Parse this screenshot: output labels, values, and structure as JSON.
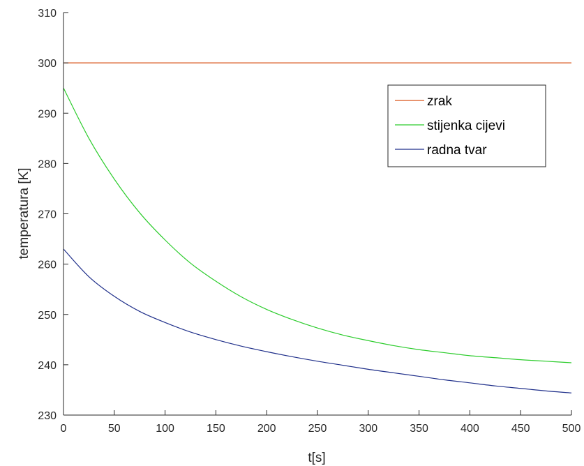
{
  "chart_data": {
    "type": "line",
    "xlabel": "t[s]",
    "ylabel": "temperatura [K]",
    "xlim": [
      0,
      500
    ],
    "ylim": [
      230,
      310
    ],
    "xticks": [
      "0",
      "50",
      "100",
      "150",
      "200",
      "250",
      "300",
      "350",
      "400",
      "450",
      "500"
    ],
    "yticks": [
      "230",
      "240",
      "250",
      "260",
      "270",
      "280",
      "290",
      "300",
      "310"
    ],
    "grid": false,
    "legend_position": "top-right",
    "x": [
      0,
      25,
      50,
      75,
      100,
      125,
      150,
      175,
      200,
      225,
      250,
      275,
      300,
      325,
      350,
      375,
      400,
      425,
      450,
      475,
      500
    ],
    "series": [
      {
        "name": "zrak",
        "color": "#d95319",
        "values": [
          300,
          300,
          300,
          300,
          300,
          300,
          300,
          300,
          300,
          300,
          300,
          300,
          300,
          300,
          300,
          300,
          300,
          300,
          300,
          300,
          300
        ]
      },
      {
        "name": "stijenka cijevi",
        "color": "#2ccc2c",
        "values": [
          295.0,
          285.0,
          276.9,
          270.2,
          264.8,
          260.2,
          256.6,
          253.5,
          251.0,
          249.0,
          247.3,
          245.9,
          244.8,
          243.8,
          243.0,
          242.4,
          241.8,
          241.4,
          241.0,
          240.7,
          240.4
        ]
      },
      {
        "name": "radna tvar",
        "color": "#1f2f8a",
        "values": [
          263.0,
          257.5,
          253.6,
          250.6,
          248.4,
          246.5,
          245.0,
          243.7,
          242.6,
          241.6,
          240.7,
          239.9,
          239.1,
          238.4,
          237.7,
          237.0,
          236.4,
          235.8,
          235.3,
          234.8,
          234.4
        ]
      }
    ]
  }
}
